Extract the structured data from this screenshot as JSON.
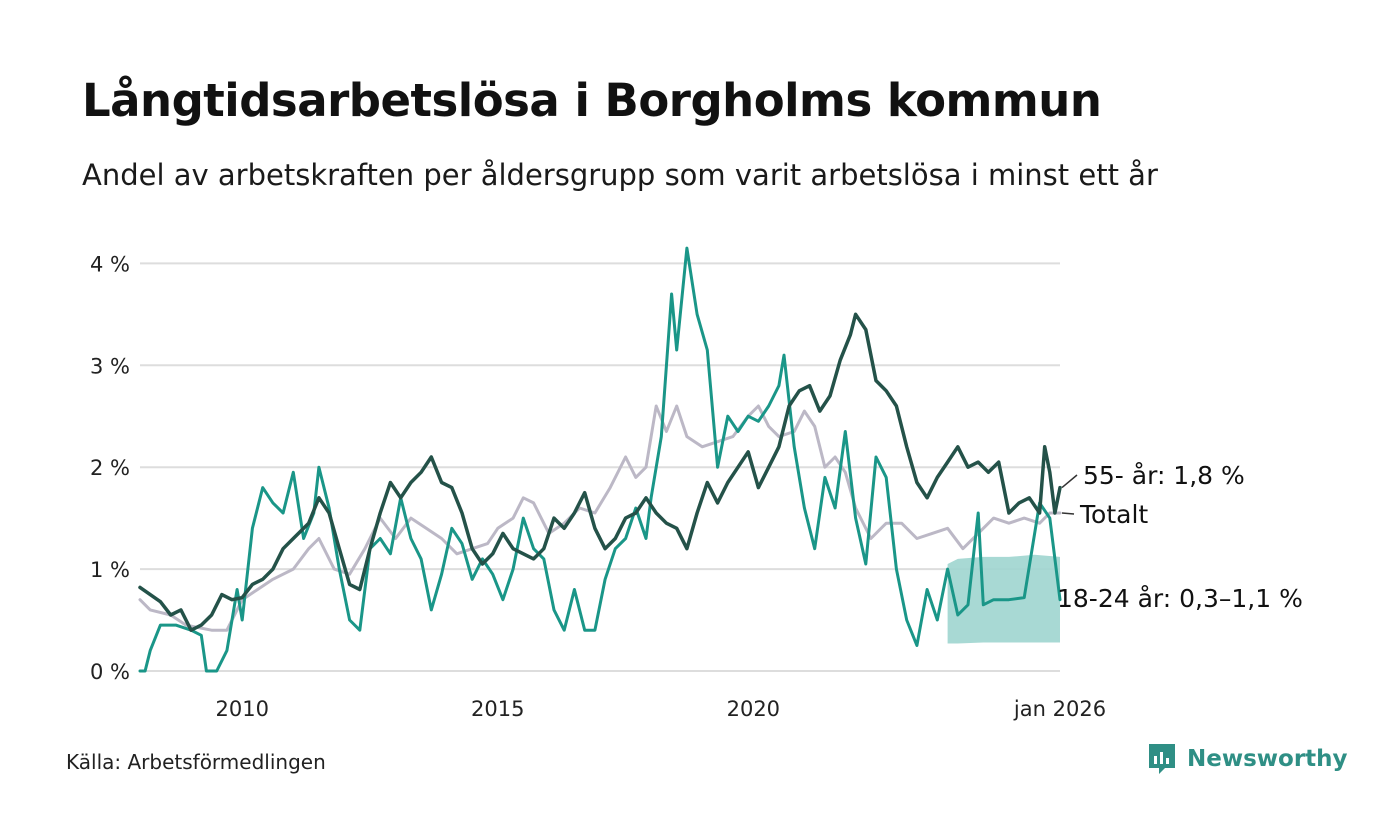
{
  "title": "Långtidsarbetslösa i Borgholms kommun",
  "subtitle": "Andel av arbetskraften per åldersgrupp som varit arbetslösa i minst ett år",
  "source": "Källa: Arbetsförmedlingen",
  "brand": "Newsworthy",
  "colors": {
    "s55": "#245249",
    "total": "#bcb8c6",
    "young": "#1a9688",
    "band": "#9fd5cf",
    "grid": "#dddddd",
    "brand": "#2f8f85"
  },
  "chart_data": {
    "type": "line",
    "ylim": [
      0,
      4.2
    ],
    "xlim": [
      2008.0,
      2026.0
    ],
    "yticks": [
      {
        "value": 0,
        "label": "0 %"
      },
      {
        "value": 1,
        "label": "1 %"
      },
      {
        "value": 2,
        "label": "2 %"
      },
      {
        "value": 3,
        "label": "3 %"
      },
      {
        "value": 4,
        "label": "4 %"
      }
    ],
    "xticks": [
      {
        "value": 2010,
        "label": "2010"
      },
      {
        "value": 2015,
        "label": "2015"
      },
      {
        "value": 2020,
        "label": "2020"
      },
      {
        "value": 2026,
        "label": "jan 2026"
      }
    ],
    "series": [
      {
        "key": "total",
        "name": "Totalt",
        "label": "Totalt",
        "points": [
          [
            2008.0,
            0.7
          ],
          [
            2008.2,
            0.6
          ],
          [
            2008.6,
            0.55
          ],
          [
            2008.9,
            0.45
          ],
          [
            2009.4,
            0.4
          ],
          [
            2009.7,
            0.4
          ],
          [
            2010.0,
            0.7
          ],
          [
            2010.3,
            0.8
          ],
          [
            2010.6,
            0.9
          ],
          [
            2011.0,
            1.0
          ],
          [
            2011.3,
            1.2
          ],
          [
            2011.5,
            1.3
          ],
          [
            2011.8,
            1.0
          ],
          [
            2012.1,
            0.95
          ],
          [
            2012.4,
            1.2
          ],
          [
            2012.7,
            1.5
          ],
          [
            2013.0,
            1.3
          ],
          [
            2013.3,
            1.5
          ],
          [
            2013.6,
            1.4
          ],
          [
            2013.9,
            1.3
          ],
          [
            2014.2,
            1.15
          ],
          [
            2014.5,
            1.2
          ],
          [
            2014.8,
            1.25
          ],
          [
            2015.0,
            1.4
          ],
          [
            2015.3,
            1.5
          ],
          [
            2015.5,
            1.7
          ],
          [
            2015.7,
            1.65
          ],
          [
            2016.0,
            1.35
          ],
          [
            2016.3,
            1.45
          ],
          [
            2016.6,
            1.6
          ],
          [
            2016.9,
            1.55
          ],
          [
            2017.2,
            1.8
          ],
          [
            2017.5,
            2.1
          ],
          [
            2017.7,
            1.9
          ],
          [
            2017.9,
            2.0
          ],
          [
            2018.1,
            2.6
          ],
          [
            2018.3,
            2.35
          ],
          [
            2018.5,
            2.6
          ],
          [
            2018.7,
            2.3
          ],
          [
            2019.0,
            2.2
          ],
          [
            2019.3,
            2.25
          ],
          [
            2019.6,
            2.3
          ],
          [
            2019.9,
            2.5
          ],
          [
            2020.1,
            2.6
          ],
          [
            2020.3,
            2.4
          ],
          [
            2020.5,
            2.3
          ],
          [
            2020.8,
            2.35
          ],
          [
            2021.0,
            2.55
          ],
          [
            2021.2,
            2.4
          ],
          [
            2021.4,
            2.0
          ],
          [
            2021.6,
            2.1
          ],
          [
            2021.8,
            1.95
          ],
          [
            2022.0,
            1.6
          ],
          [
            2022.3,
            1.3
          ],
          [
            2022.6,
            1.45
          ],
          [
            2022.9,
            1.45
          ],
          [
            2023.2,
            1.3
          ],
          [
            2023.5,
            1.35
          ],
          [
            2023.8,
            1.4
          ],
          [
            2024.1,
            1.2
          ],
          [
            2024.4,
            1.35
          ],
          [
            2024.7,
            1.5
          ],
          [
            2025.0,
            1.45
          ],
          [
            2025.3,
            1.5
          ],
          [
            2025.6,
            1.45
          ],
          [
            2025.8,
            1.55
          ],
          [
            2026.0,
            1.55
          ]
        ]
      },
      {
        "key": "young",
        "name": "18-24 år",
        "label": "18-24 år: 0,3–1,1 %",
        "points": [
          [
            2008.0,
            0.0
          ],
          [
            2008.1,
            0.0
          ],
          [
            2008.2,
            0.2
          ],
          [
            2008.4,
            0.45
          ],
          [
            2008.7,
            0.45
          ],
          [
            2009.0,
            0.4
          ],
          [
            2009.2,
            0.35
          ],
          [
            2009.3,
            0.0
          ],
          [
            2009.5,
            0.0
          ],
          [
            2009.7,
            0.2
          ],
          [
            2009.9,
            0.8
          ],
          [
            2010.0,
            0.5
          ],
          [
            2010.2,
            1.4
          ],
          [
            2010.4,
            1.8
          ],
          [
            2010.6,
            1.65
          ],
          [
            2010.8,
            1.55
          ],
          [
            2011.0,
            1.95
          ],
          [
            2011.2,
            1.3
          ],
          [
            2011.4,
            1.55
          ],
          [
            2011.5,
            2.0
          ],
          [
            2011.7,
            1.6
          ],
          [
            2011.9,
            1.0
          ],
          [
            2012.1,
            0.5
          ],
          [
            2012.3,
            0.4
          ],
          [
            2012.5,
            1.2
          ],
          [
            2012.7,
            1.3
          ],
          [
            2012.9,
            1.15
          ],
          [
            2013.1,
            1.7
          ],
          [
            2013.3,
            1.3
          ],
          [
            2013.5,
            1.1
          ],
          [
            2013.7,
            0.6
          ],
          [
            2013.9,
            0.95
          ],
          [
            2014.1,
            1.4
          ],
          [
            2014.3,
            1.25
          ],
          [
            2014.5,
            0.9
          ],
          [
            2014.7,
            1.1
          ],
          [
            2014.9,
            0.95
          ],
          [
            2015.1,
            0.7
          ],
          [
            2015.3,
            1.0
          ],
          [
            2015.5,
            1.5
          ],
          [
            2015.7,
            1.2
          ],
          [
            2015.9,
            1.1
          ],
          [
            2016.1,
            0.6
          ],
          [
            2016.3,
            0.4
          ],
          [
            2016.5,
            0.8
          ],
          [
            2016.7,
            0.4
          ],
          [
            2016.9,
            0.4
          ],
          [
            2017.1,
            0.9
          ],
          [
            2017.3,
            1.2
          ],
          [
            2017.5,
            1.3
          ],
          [
            2017.7,
            1.6
          ],
          [
            2017.9,
            1.3
          ],
          [
            2018.0,
            1.7
          ],
          [
            2018.2,
            2.3
          ],
          [
            2018.4,
            3.7
          ],
          [
            2018.5,
            3.15
          ],
          [
            2018.7,
            4.15
          ],
          [
            2018.9,
            3.5
          ],
          [
            2019.1,
            3.15
          ],
          [
            2019.3,
            2.0
          ],
          [
            2019.5,
            2.5
          ],
          [
            2019.7,
            2.35
          ],
          [
            2019.9,
            2.5
          ],
          [
            2020.1,
            2.45
          ],
          [
            2020.3,
            2.6
          ],
          [
            2020.5,
            2.8
          ],
          [
            2020.6,
            3.1
          ],
          [
            2020.8,
            2.2
          ],
          [
            2021.0,
            1.6
          ],
          [
            2021.2,
            1.2
          ],
          [
            2021.4,
            1.9
          ],
          [
            2021.6,
            1.6
          ],
          [
            2021.8,
            2.35
          ],
          [
            2022.0,
            1.5
          ],
          [
            2022.2,
            1.05
          ],
          [
            2022.4,
            2.1
          ],
          [
            2022.6,
            1.9
          ],
          [
            2022.8,
            1.0
          ],
          [
            2023.0,
            0.5
          ],
          [
            2023.2,
            0.25
          ],
          [
            2023.4,
            0.8
          ],
          [
            2023.6,
            0.5
          ],
          [
            2023.8,
            1.0
          ],
          [
            2024.0,
            0.55
          ],
          [
            2024.2,
            0.65
          ],
          [
            2024.4,
            1.55
          ],
          [
            2024.5,
            0.65
          ],
          [
            2024.7,
            0.7
          ],
          [
            2025.0,
            0.7
          ],
          [
            2025.3,
            0.72
          ],
          [
            2025.6,
            1.65
          ],
          [
            2025.8,
            1.5
          ],
          [
            2026.0,
            0.7
          ]
        ]
      },
      {
        "key": "s55",
        "name": "55- år",
        "label": "55- år: 1,8 %",
        "points": [
          [
            2008.0,
            0.82
          ],
          [
            2008.2,
            0.75
          ],
          [
            2008.4,
            0.68
          ],
          [
            2008.6,
            0.55
          ],
          [
            2008.8,
            0.6
          ],
          [
            2009.0,
            0.4
          ],
          [
            2009.2,
            0.45
          ],
          [
            2009.4,
            0.55
          ],
          [
            2009.6,
            0.75
          ],
          [
            2009.8,
            0.7
          ],
          [
            2010.0,
            0.72
          ],
          [
            2010.2,
            0.85
          ],
          [
            2010.4,
            0.9
          ],
          [
            2010.6,
            1.0
          ],
          [
            2010.8,
            1.2
          ],
          [
            2011.0,
            1.3
          ],
          [
            2011.3,
            1.45
          ],
          [
            2011.5,
            1.7
          ],
          [
            2011.7,
            1.55
          ],
          [
            2011.9,
            1.2
          ],
          [
            2012.1,
            0.85
          ],
          [
            2012.3,
            0.8
          ],
          [
            2012.5,
            1.2
          ],
          [
            2012.7,
            1.55
          ],
          [
            2012.9,
            1.85
          ],
          [
            2013.1,
            1.7
          ],
          [
            2013.3,
            1.85
          ],
          [
            2013.5,
            1.95
          ],
          [
            2013.7,
            2.1
          ],
          [
            2013.9,
            1.85
          ],
          [
            2014.1,
            1.8
          ],
          [
            2014.3,
            1.55
          ],
          [
            2014.5,
            1.2
          ],
          [
            2014.7,
            1.05
          ],
          [
            2014.9,
            1.15
          ],
          [
            2015.1,
            1.35
          ],
          [
            2015.3,
            1.2
          ],
          [
            2015.5,
            1.15
          ],
          [
            2015.7,
            1.1
          ],
          [
            2015.9,
            1.2
          ],
          [
            2016.1,
            1.5
          ],
          [
            2016.3,
            1.4
          ],
          [
            2016.5,
            1.55
          ],
          [
            2016.7,
            1.75
          ],
          [
            2016.9,
            1.4
          ],
          [
            2017.1,
            1.2
          ],
          [
            2017.3,
            1.3
          ],
          [
            2017.5,
            1.5
          ],
          [
            2017.7,
            1.55
          ],
          [
            2017.9,
            1.7
          ],
          [
            2018.1,
            1.55
          ],
          [
            2018.3,
            1.45
          ],
          [
            2018.5,
            1.4
          ],
          [
            2018.7,
            1.2
          ],
          [
            2018.9,
            1.55
          ],
          [
            2019.1,
            1.85
          ],
          [
            2019.3,
            1.65
          ],
          [
            2019.5,
            1.85
          ],
          [
            2019.7,
            2.0
          ],
          [
            2019.9,
            2.15
          ],
          [
            2020.1,
            1.8
          ],
          [
            2020.3,
            2.0
          ],
          [
            2020.5,
            2.2
          ],
          [
            2020.7,
            2.6
          ],
          [
            2020.9,
            2.75
          ],
          [
            2021.1,
            2.8
          ],
          [
            2021.3,
            2.55
          ],
          [
            2021.5,
            2.7
          ],
          [
            2021.7,
            3.05
          ],
          [
            2021.9,
            3.3
          ],
          [
            2022.0,
            3.5
          ],
          [
            2022.2,
            3.35
          ],
          [
            2022.4,
            2.85
          ],
          [
            2022.6,
            2.75
          ],
          [
            2022.8,
            2.6
          ],
          [
            2023.0,
            2.2
          ],
          [
            2023.2,
            1.85
          ],
          [
            2023.4,
            1.7
          ],
          [
            2023.6,
            1.9
          ],
          [
            2023.8,
            2.05
          ],
          [
            2024.0,
            2.2
          ],
          [
            2024.2,
            2.0
          ],
          [
            2024.4,
            2.05
          ],
          [
            2024.6,
            1.95
          ],
          [
            2024.8,
            2.05
          ],
          [
            2025.0,
            1.55
          ],
          [
            2025.2,
            1.65
          ],
          [
            2025.4,
            1.7
          ],
          [
            2025.6,
            1.55
          ],
          [
            2025.7,
            2.2
          ],
          [
            2025.8,
            1.95
          ],
          [
            2025.9,
            1.55
          ],
          [
            2026.0,
            1.8
          ]
        ]
      }
    ],
    "band": {
      "name": "18-24 år osäkerhetsintervall",
      "points": [
        [
          2023.8,
          0.27,
          1.05
        ],
        [
          2024.0,
          0.27,
          1.1
        ],
        [
          2024.5,
          0.28,
          1.12
        ],
        [
          2025.0,
          0.28,
          1.12
        ],
        [
          2025.5,
          0.28,
          1.14
        ],
        [
          2026.0,
          0.28,
          1.12
        ]
      ]
    }
  }
}
